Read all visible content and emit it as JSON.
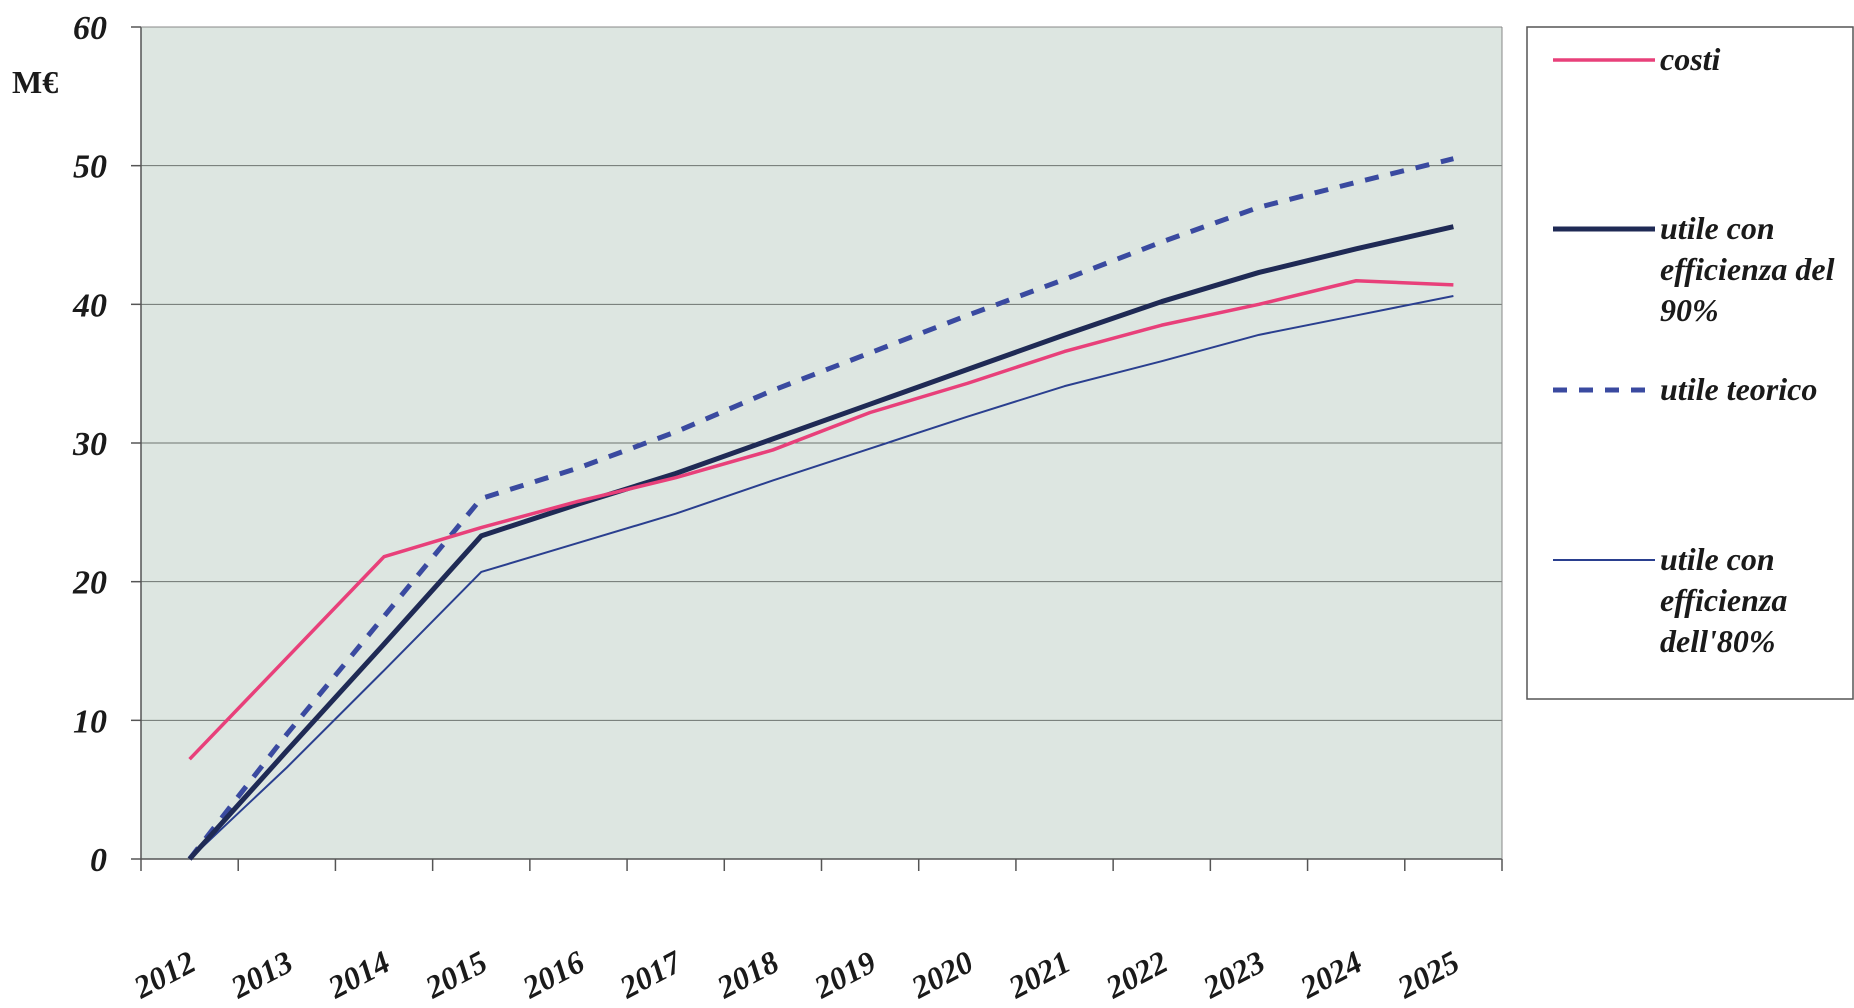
{
  "chart_data": {
    "type": "line",
    "ylabel": "M€",
    "ylim": [
      0,
      60
    ],
    "yticks": [
      0,
      10,
      20,
      30,
      40,
      50,
      60
    ],
    "grid": true,
    "legend_position": "right",
    "categories": [
      "2012",
      "2013",
      "2014",
      "2015",
      "2016",
      "2017",
      "2018",
      "2019",
      "2020",
      "2021",
      "2022",
      "2023",
      "2024",
      "2025"
    ],
    "series": [
      {
        "name": "costi",
        "color": "#e8407a",
        "style": "solid",
        "width": "medium",
        "values": [
          7.2,
          14.5,
          21.8,
          23.9,
          25.8,
          27.5,
          29.5,
          32.2,
          34.3,
          36.6,
          38.5,
          40.0,
          41.7,
          41.4
        ]
      },
      {
        "name": "utile con efficienza del 90%",
        "color": "#1f2a55",
        "style": "solid",
        "width": "thick",
        "values": [
          0,
          7.8,
          15.5,
          23.3,
          25.6,
          27.8,
          30.3,
          32.8,
          35.3,
          37.8,
          40.2,
          42.3,
          44.0,
          45.6
        ]
      },
      {
        "name": "utile teorico",
        "color": "#3a4aa0",
        "style": "dashed",
        "width": "thick",
        "values": [
          0,
          9.0,
          17.5,
          26.0,
          28.2,
          30.8,
          33.8,
          36.5,
          39.2,
          41.8,
          44.5,
          47.0,
          48.8,
          50.5
        ]
      },
      {
        "name": "utile con efficienza dell'80%",
        "color": "#2a3f8f",
        "style": "solid",
        "width": "thin",
        "values": [
          0,
          6.6,
          13.6,
          20.7,
          22.8,
          24.9,
          27.3,
          29.6,
          31.9,
          34.1,
          35.9,
          37.8,
          39.2,
          40.6
        ]
      }
    ],
    "legend": [
      {
        "lines": [
          "costi"
        ]
      },
      {
        "lines": [
          "utile con",
          "efficienza del",
          "90%"
        ]
      },
      {
        "lines": [
          "utile teorico"
        ]
      },
      {
        "lines": [
          "utile con",
          "efficienza",
          "dell'80%"
        ]
      }
    ]
  }
}
